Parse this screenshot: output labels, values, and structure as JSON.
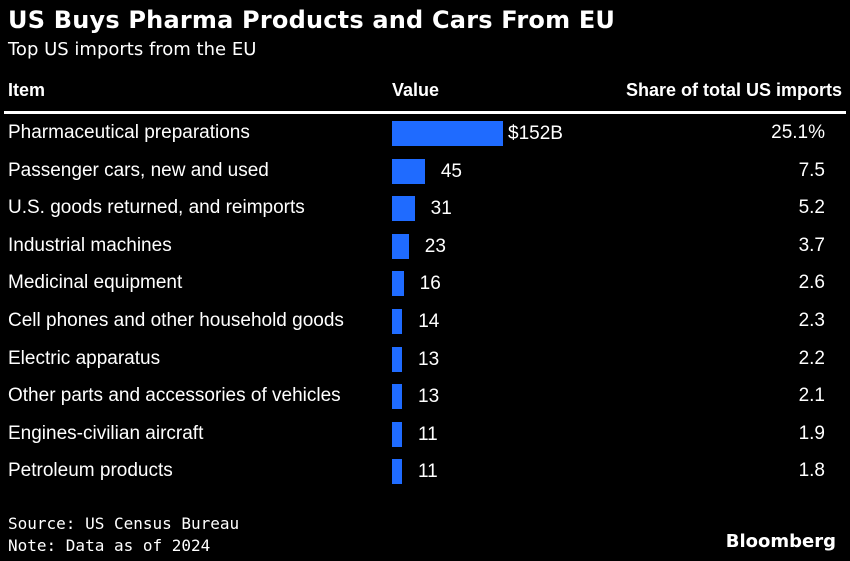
{
  "chart_data": {
    "type": "bar",
    "title": "US Buys Pharma Products and Cars From EU",
    "subtitle": "Top US imports from the EU",
    "columns": {
      "item": "Item",
      "value": "Value",
      "share": "Share of total US imports"
    },
    "categories": [
      "Pharmaceutical preparations",
      "Passenger cars, new and used",
      "U.S. goods returned, and reimports",
      "Industrial machines",
      "Medicinal equipment",
      "Cell phones and other household goods",
      "Electric apparatus",
      "Other parts and accessories of vehicles",
      "Engines-civilian aircraft",
      "Petroleum products"
    ],
    "values": [
      152,
      45,
      31,
      23,
      16,
      14,
      13,
      13,
      11,
      11
    ],
    "value_labels": [
      "$152B",
      "45",
      "31",
      "23",
      "16",
      "14",
      "13",
      "13",
      "11",
      "11"
    ],
    "shares": [
      "25.1%",
      "7.5",
      "5.2",
      "3.7",
      "2.6",
      "2.3",
      "2.2",
      "2.1",
      "1.9",
      "1.8"
    ],
    "bar_color": "#1f6bff",
    "source": "Source: US Census Bureau",
    "note": "Note: Data as of 2024",
    "brand": "Bloomberg"
  }
}
